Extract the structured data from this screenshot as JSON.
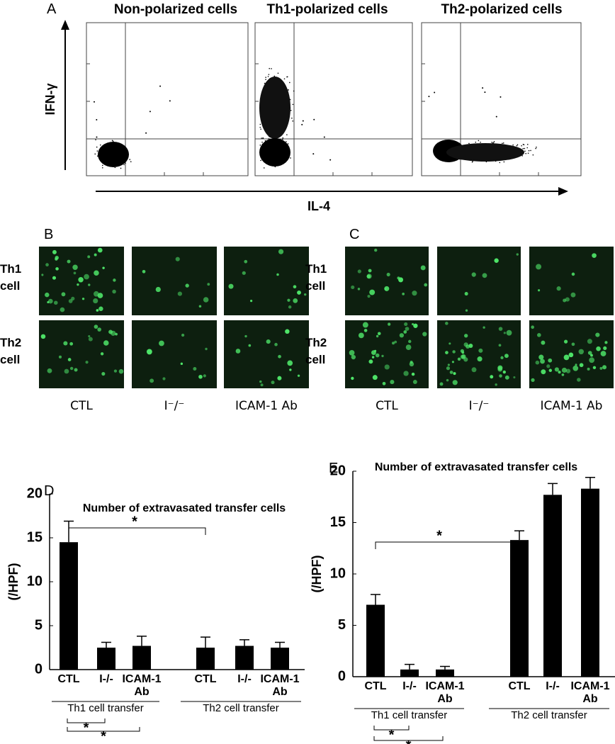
{
  "panels": {
    "A": {
      "letter": "A",
      "titles": [
        "Non-polarized cells",
        "Th1-polarized cells",
        "Th2-polarized cells"
      ],
      "y_label": "IFN-γ",
      "x_label": "IL-4"
    },
    "B": {
      "letter": "B",
      "rows": [
        "Th1 cell",
        "Th2 cell"
      ],
      "columns": [
        "CTL",
        "I⁻/⁻",
        "ICAM-1 Ab"
      ]
    },
    "C": {
      "letter": "C",
      "rows": [
        "Th1 cell",
        "Th2 cell"
      ],
      "columns": [
        "CTL",
        "I⁻/⁻",
        "ICAM-1 Ab"
      ]
    }
  },
  "chart_data": [
    {
      "type": "bar",
      "letter": "D",
      "title": "Number of extravasated transfer cells",
      "y_label": "(/HPF)",
      "categories": [
        "CTL",
        "I-/-",
        "ICAM-1 Ab",
        "CTL",
        "I-/-",
        "ICAM-1 Ab"
      ],
      "values": [
        14.5,
        2.5,
        2.7,
        2.5,
        2.7,
        2.5
      ],
      "errors": [
        2.4,
        0.6,
        1.1,
        1.2,
        0.7,
        0.6
      ],
      "groups": [
        "Th1 cell transfer",
        "Th2 cell transfer"
      ],
      "annotations": [
        "*",
        "*",
        "*"
      ],
      "color": "#000000",
      "ylim": [
        0,
        20
      ],
      "yticks": [
        0,
        5,
        10,
        15,
        20
      ]
    },
    {
      "type": "bar",
      "letter": "E",
      "title": "Number of extravasated transfer cells",
      "y_label": "(/HPF)",
      "categories": [
        "CTL",
        "I-/-",
        "ICAM-1 Ab",
        "CTL",
        "I-/-",
        "ICAM-1 Ab"
      ],
      "values": [
        7.0,
        0.7,
        0.7,
        13.3,
        17.7,
        18.3
      ],
      "errors": [
        1.0,
        0.5,
        0.3,
        0.9,
        1.1,
        1.1
      ],
      "groups": [
        "Th1 cell transfer",
        "Th2 cell transfer"
      ],
      "annotations": [
        "*",
        "*",
        "*"
      ],
      "color": "#000000",
      "ylim": [
        0,
        20
      ],
      "yticks": [
        0,
        5,
        10,
        15,
        20
      ]
    }
  ]
}
